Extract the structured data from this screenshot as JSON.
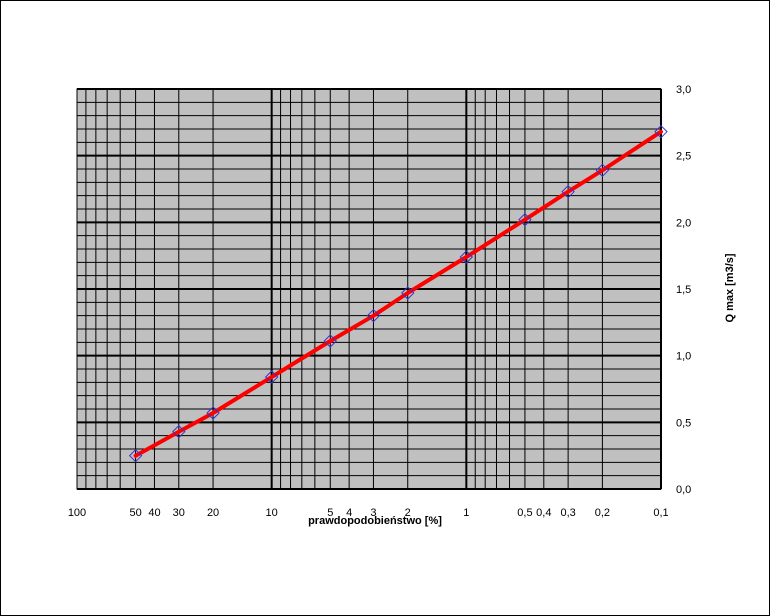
{
  "chart_data": {
    "type": "line",
    "title": "",
    "xlabel": "prawdopodobieństwo [%]",
    "ylabel": "Q max [m3/s]",
    "x_scale": "probability (log, reversed)",
    "xlim": [
      100,
      0.1
    ],
    "ylim": [
      0,
      3
    ],
    "grid": true,
    "x_ticks": [
      {
        "value": 100,
        "label": "100"
      },
      {
        "value": 50,
        "label": "50"
      },
      {
        "value": 40,
        "label": "40"
      },
      {
        "value": 30,
        "label": "30"
      },
      {
        "value": 20,
        "label": "20"
      },
      {
        "value": 10,
        "label": "10"
      },
      {
        "value": 5,
        "label": "5"
      },
      {
        "value": 4,
        "label": "4"
      },
      {
        "value": 3,
        "label": "3"
      },
      {
        "value": 2,
        "label": "2"
      },
      {
        "value": 1,
        "label": "1"
      },
      {
        "value": 0.5,
        "label": "0,5"
      },
      {
        "value": 0.4,
        "label": "0,4"
      },
      {
        "value": 0.3,
        "label": "0,3"
      },
      {
        "value": 0.2,
        "label": "0,2"
      },
      {
        "value": 0.1,
        "label": "0,1"
      }
    ],
    "y_ticks": [
      {
        "value": 0,
        "label": "0,0"
      },
      {
        "value": 0.5,
        "label": "0,5"
      },
      {
        "value": 1,
        "label": "1,0"
      },
      {
        "value": 1.5,
        "label": "1,5"
      },
      {
        "value": 2,
        "label": "2,0"
      },
      {
        "value": 2.5,
        "label": "2,5"
      },
      {
        "value": 3,
        "label": "3,0"
      }
    ],
    "series": [
      {
        "x": [
          50,
          30,
          20,
          10,
          5,
          3,
          2,
          1,
          0.5,
          0.3,
          0.2,
          0.1
        ],
        "y": [
          0.25,
          0.43,
          0.57,
          0.84,
          1.11,
          1.3,
          1.47,
          1.74,
          2.02,
          2.23,
          2.39,
          2.68
        ],
        "line_color": "#ff0000",
        "marker": "diamond",
        "marker_color": "#3333cc"
      }
    ],
    "colors": {
      "plot_background": "#c0c0c0",
      "grid": "#000000"
    }
  }
}
